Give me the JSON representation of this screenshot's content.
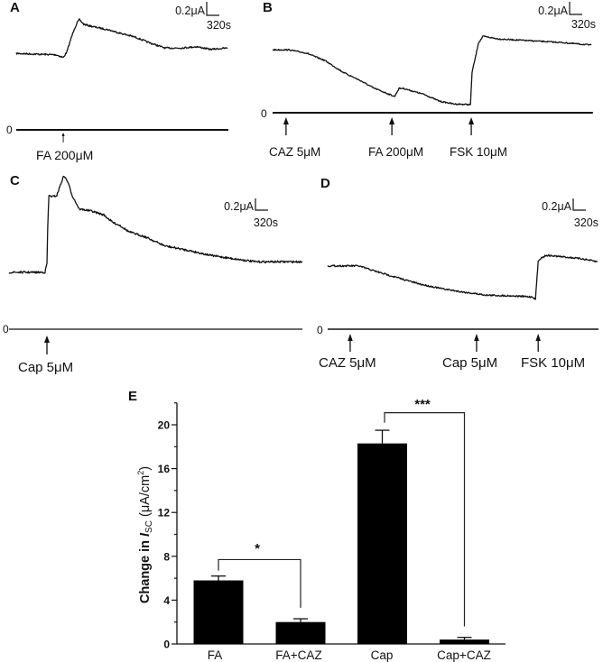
{
  "panels": {
    "A": {
      "label": "A",
      "scale_current": "0.2μA",
      "scale_time": "320s",
      "zero_label": "0",
      "events": [
        "FA 200μM"
      ]
    },
    "B": {
      "label": "B",
      "scale_current": "0.2μA",
      "scale_time": "320s",
      "zero_label": "0",
      "events": [
        "CAZ 5μM",
        "FA 200μM",
        "FSK 10μM"
      ]
    },
    "C": {
      "label": "C",
      "scale_current": "0.2μA",
      "scale_time": "320s",
      "zero_label": "0",
      "events": [
        "Cap 5μM"
      ]
    },
    "D": {
      "label": "D",
      "scale_current": "0.2μA",
      "scale_time": "320s",
      "zero_label": "0",
      "events": [
        "CAZ 5μM",
        "Cap 5μM",
        "FSK 10μM"
      ]
    },
    "E": {
      "label": "E",
      "ylabel_parts": [
        "Change in ",
        "I",
        "SC",
        " (μA/cm",
        "2",
        ")"
      ],
      "significance_labels": [
        "*",
        "***"
      ]
    }
  },
  "colors": {
    "trace": "#111111",
    "bar": "#000000",
    "background": "#ffffff"
  },
  "chart_data": [
    {
      "panel_label": "A",
      "type": "line",
      "units": {
        "x": "s",
        "y": "μA"
      },
      "scale_bar": {
        "current": "0.2μA",
        "time": "320s"
      },
      "zero_label": "0",
      "x": [
        0,
        500,
        1010,
        1190,
        1280,
        1370,
        1460,
        1550,
        1600,
        1710,
        1990,
        2330,
        2630,
        3020,
        3360,
        3770,
        4160,
        4570,
        4910,
        5350
      ],
      "y": [
        1.13,
        1.12,
        1.11,
        1.07,
        1.15,
        1.32,
        1.48,
        1.59,
        1.63,
        1.56,
        1.52,
        1.48,
        1.43,
        1.37,
        1.29,
        1.21,
        1.21,
        1.23,
        1.19,
        1.21
      ],
      "baseline_end": 5370,
      "events": [
        {
          "label": "FA 200μM",
          "t": 1190
        }
      ]
    },
    {
      "panel_label": "B",
      "type": "line",
      "units": {
        "x": "s",
        "y": "μA"
      },
      "scale_bar": {
        "current": "0.2μA",
        "time": "320s"
      },
      "zero_label": "0",
      "x": [
        0,
        410,
        870,
        1030,
        1330,
        1780,
        2240,
        2540,
        2880,
        3090,
        3200,
        3310,
        3840,
        4230,
        4590,
        5010,
        5050,
        5140,
        5210,
        5330,
        5740,
        6350,
        7270,
        8070
      ],
      "y": [
        0.93,
        0.93,
        0.88,
        0.84,
        0.77,
        0.6,
        0.47,
        0.37,
        0.29,
        0.24,
        0.36,
        0.36,
        0.27,
        0.17,
        0.13,
        0.12,
        0.6,
        0.83,
        1.03,
        1.13,
        1.09,
        1.07,
        1.04,
        1.0
      ],
      "baseline_end": 8110,
      "events": [
        {
          "label": "CAZ 5μM",
          "t": 340
        },
        {
          "label": "FA 200μM",
          "t": 3020
        },
        {
          "label": "FSK 10μM",
          "t": 5030
        }
      ]
    },
    {
      "panel_label": "C",
      "type": "line",
      "units": {
        "x": "s",
        "y": "μA"
      },
      "scale_bar": {
        "current": "0.2μA",
        "time": "320s"
      },
      "zero_label": "0",
      "x": [
        0,
        460,
        910,
        960,
        980,
        1010,
        1100,
        1210,
        1300,
        1390,
        1490,
        1600,
        1780,
        2060,
        2400,
        2630,
        2810,
        3040,
        3430,
        3950,
        4570,
        5100,
        5710,
        6240,
        6860,
        7430
      ],
      "y": [
        0.97,
        0.97,
        0.97,
        1.12,
        1.74,
        2.28,
        2.26,
        2.28,
        2.46,
        2.62,
        2.51,
        2.28,
        2.05,
        2.02,
        1.95,
        1.82,
        1.77,
        1.66,
        1.58,
        1.42,
        1.34,
        1.26,
        1.2,
        1.15,
        1.15,
        1.15
      ],
      "baseline_end": 7430,
      "events": [
        {
          "label": "Cap 5μM",
          "t": 960
        }
      ]
    },
    {
      "panel_label": "D",
      "type": "line",
      "units": {
        "x": "s",
        "y": "μA"
      },
      "scale_bar": {
        "current": "0.2μA",
        "time": "320s"
      },
      "zero_label": "0",
      "x": [
        0,
        780,
        1300,
        1760,
        2330,
        2900,
        3470,
        4050,
        4620,
        5190,
        5260,
        5330,
        5370,
        5530,
        6030,
        6450,
        6830
      ],
      "y": [
        1.08,
        1.08,
        0.97,
        0.88,
        0.77,
        0.69,
        0.63,
        0.58,
        0.57,
        0.55,
        0.51,
        1.15,
        1.2,
        1.26,
        1.23,
        1.2,
        1.15
      ],
      "baseline_end": 6860,
      "events": [
        {
          "label": "CAZ 5μM",
          "t": 570
        },
        {
          "label": "Cap 5μM",
          "t": 3770
        },
        {
          "label": "FSK 10μM",
          "t": 5330
        }
      ]
    },
    {
      "panel_label": "E",
      "type": "bar",
      "categories": [
        "FA",
        "FA+CAZ",
        "Cap",
        "Cap+CAZ"
      ],
      "values": [
        5.8,
        2.0,
        18.3,
        0.4
      ],
      "errors": [
        0.4,
        0.3,
        1.2,
        0.2
      ],
      "title": "",
      "xlabel": "",
      "ylabel": "Change in Isc (μA/cm²)",
      "ylim": [
        0,
        22
      ],
      "yticks": [
        0,
        4,
        8,
        12,
        16,
        20
      ],
      "grid": false,
      "significance": [
        {
          "from": 0,
          "to": 1,
          "label": "*",
          "y": 7.7,
          "left_end": 6.7,
          "right_end": 3.3
        },
        {
          "from": 2,
          "to": 3,
          "label": "***",
          "y": 21.1,
          "left_end": 20.2,
          "right_end": 1.6
        }
      ]
    }
  ]
}
